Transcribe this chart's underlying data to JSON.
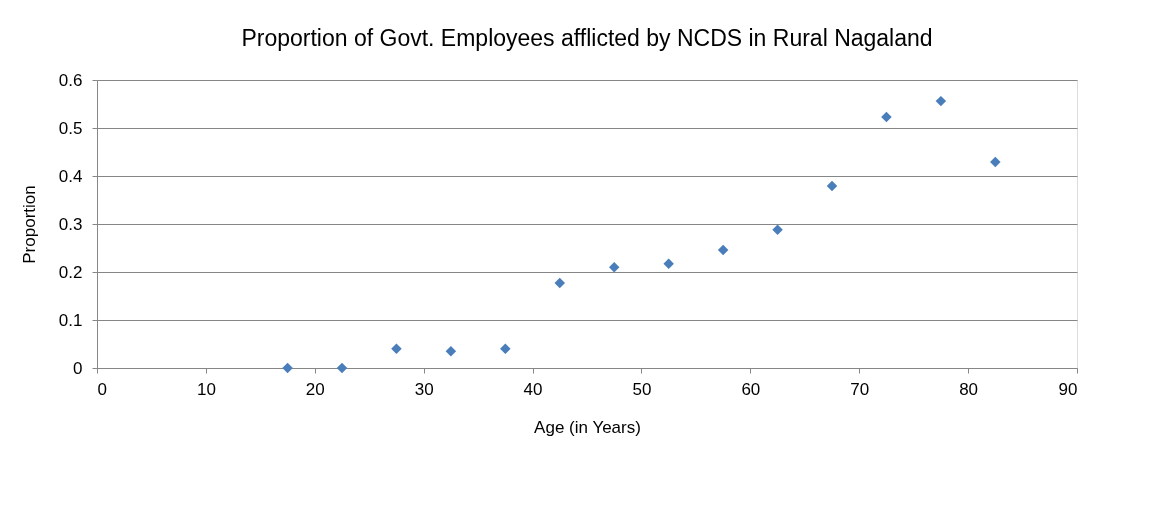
{
  "chart_data": {
    "type": "scatter",
    "title": "Proportion of Govt. Employees afflicted by NCDS in Rural Nagaland",
    "xlabel": "Age (in Years)",
    "ylabel": "Proportion",
    "x": [
      17.5,
      22.5,
      27.5,
      32.5,
      37.5,
      42.5,
      47.5,
      52.5,
      57.5,
      62.5,
      67.5,
      72.5,
      77.5,
      82.5
    ],
    "series": [
      {
        "color": "#4a7ebb",
        "values": [
          0,
          0,
          0.04,
          0.035,
          0.04,
          0.177,
          0.21,
          0.217,
          0.246,
          0.288,
          0.379,
          0.523,
          0.556,
          0.429
        ]
      }
    ],
    "xlim": [
      0,
      90
    ],
    "xticks": [
      0,
      10,
      20,
      30,
      40,
      50,
      60,
      70,
      80,
      90
    ],
    "ylim": [
      0,
      0.6
    ],
    "yticks": [
      0,
      0.1,
      0.2,
      0.3,
      0.4,
      0.5,
      0.6
    ],
    "grid": "y",
    "marker": "diamond",
    "legend": false
  }
}
